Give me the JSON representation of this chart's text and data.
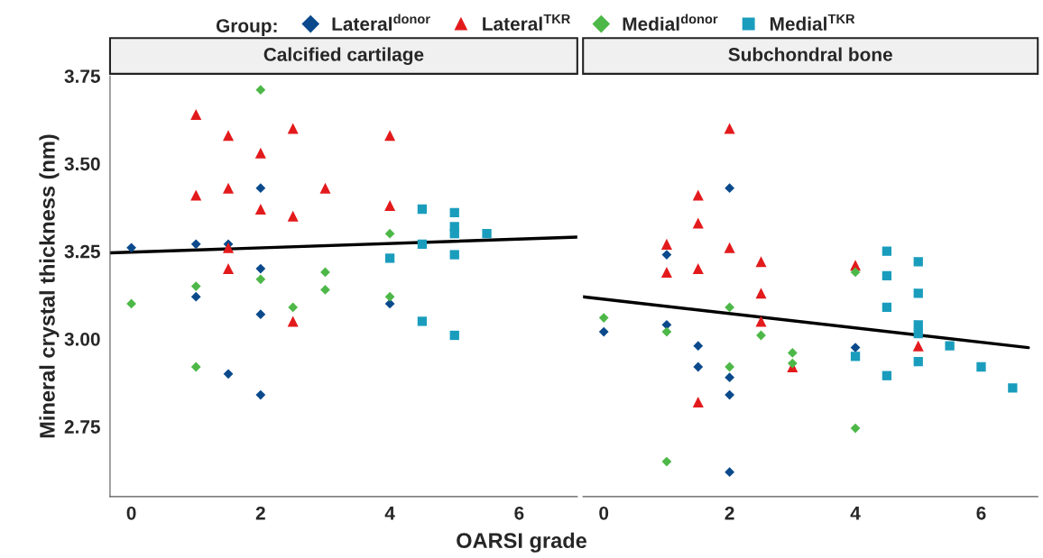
{
  "chart_data": [
    {
      "type": "scatter",
      "title": "Calcified cartilage",
      "xlabel": "OARSI grade",
      "ylabel": "Mineral crystal thickness (nm)",
      "legend_title": "Group:",
      "legend": "top",
      "grid": false,
      "xlim": [
        -0.33,
        6.9
      ],
      "xticks": [
        0,
        2,
        4,
        6
      ],
      "ylim": [
        2.55,
        3.75
      ],
      "yticks": [
        {
          "value": 2.75,
          "label": "2.75"
        },
        {
          "value": 3.0,
          "label": "3.00"
        },
        {
          "value": 3.25,
          "label": "3.25"
        },
        {
          "value": 3.5,
          "label": "3.50"
        },
        {
          "value": 3.75,
          "label": "3.75"
        }
      ],
      "series": [
        {
          "name": "Lateral$^{donor}$",
          "color": "#0a4a8c",
          "marker": "diamond",
          "x": [
            0,
            1,
            1,
            1.5,
            1.5,
            2,
            2,
            2,
            2,
            4
          ],
          "values": [
            3.26,
            3.27,
            3.12,
            3.27,
            2.9,
            3.43,
            3.2,
            3.07,
            2.84,
            3.1
          ]
        },
        {
          "name": "Lateral$^{TKR}$",
          "color": "#e31a1c",
          "marker": "triangle",
          "x": [
            1,
            1,
            1.5,
            1.5,
            1.5,
            1.5,
            2,
            2,
            2.5,
            2.5,
            2.5,
            3,
            4,
            4
          ],
          "values": [
            3.64,
            3.41,
            3.58,
            3.43,
            3.26,
            3.2,
            3.53,
            3.37,
            3.6,
            3.35,
            3.05,
            3.43,
            3.58,
            3.38
          ]
        },
        {
          "name": "Medial$^{donor}$",
          "color": "#4db848",
          "marker": "diamond",
          "x": [
            0,
            1,
            1,
            2,
            2,
            2.5,
            3,
            3,
            4,
            4
          ],
          "values": [
            3.1,
            3.15,
            2.92,
            3.71,
            3.17,
            3.09,
            3.19,
            3.14,
            3.3,
            3.12
          ]
        },
        {
          "name": "Medial$^{TKR}$",
          "color": "#1a9dbd",
          "marker": "square",
          "x": [
            4,
            4.5,
            4.5,
            4.5,
            5,
            5,
            5,
            5,
            5,
            5.5
          ],
          "values": [
            3.23,
            3.37,
            3.27,
            3.05,
            3.36,
            3.32,
            3.3,
            3.24,
            3.01,
            3.3
          ]
        },
        {
          "type": "line",
          "color": "#000000",
          "marker": "none",
          "x": [
            -0.33,
            6.9
          ],
          "values": [
            3.245,
            3.29
          ]
        }
      ]
    },
    {
      "type": "scatter",
      "title": "Subchondral bone",
      "legend": false,
      "grid": false,
      "tick_labels": "x",
      "xlim": [
        -0.33,
        6.9
      ],
      "xticks": [
        0,
        2,
        4,
        6
      ],
      "ylim": [
        2.55,
        3.75
      ],
      "series": [
        {
          "color": "#0a4a8c",
          "marker": "diamond",
          "x": [
            0,
            1,
            1,
            1.5,
            1.5,
            2,
            2,
            2,
            2,
            4
          ],
          "values": [
            3.02,
            3.24,
            3.04,
            2.98,
            2.92,
            3.43,
            2.89,
            2.84,
            2.62,
            2.975
          ]
        },
        {
          "color": "#e31a1c",
          "marker": "triangle",
          "x": [
            1,
            1,
            1.5,
            1.5,
            1.5,
            1.5,
            2,
            2,
            2.5,
            2.5,
            2.5,
            3,
            4,
            5
          ],
          "values": [
            3.27,
            3.19,
            3.41,
            3.33,
            3.2,
            2.82,
            3.6,
            3.26,
            3.22,
            3.13,
            3.05,
            2.92,
            3.21,
            2.98
          ]
        },
        {
          "color": "#4db848",
          "marker": "diamond",
          "x": [
            0,
            1,
            1,
            2,
            2,
            2.5,
            3,
            3,
            4,
            4
          ],
          "values": [
            3.06,
            3.02,
            2.65,
            3.09,
            2.92,
            3.01,
            2.96,
            2.93,
            3.19,
            2.745
          ]
        },
        {
          "color": "#1a9dbd",
          "marker": "square",
          "x": [
            4,
            4.5,
            4.5,
            4.5,
            4.5,
            5,
            5,
            5,
            5,
            5,
            5.5,
            6,
            6.5
          ],
          "values": [
            2.95,
            3.25,
            3.18,
            3.09,
            2.895,
            3.22,
            3.13,
            3.04,
            3.015,
            2.935,
            2.98,
            2.92,
            2.86
          ]
        },
        {
          "type": "line",
          "color": "#000000",
          "marker": "none",
          "x": [
            -0.33,
            6.75
          ],
          "values": [
            3.12,
            2.975
          ]
        }
      ]
    }
  ]
}
